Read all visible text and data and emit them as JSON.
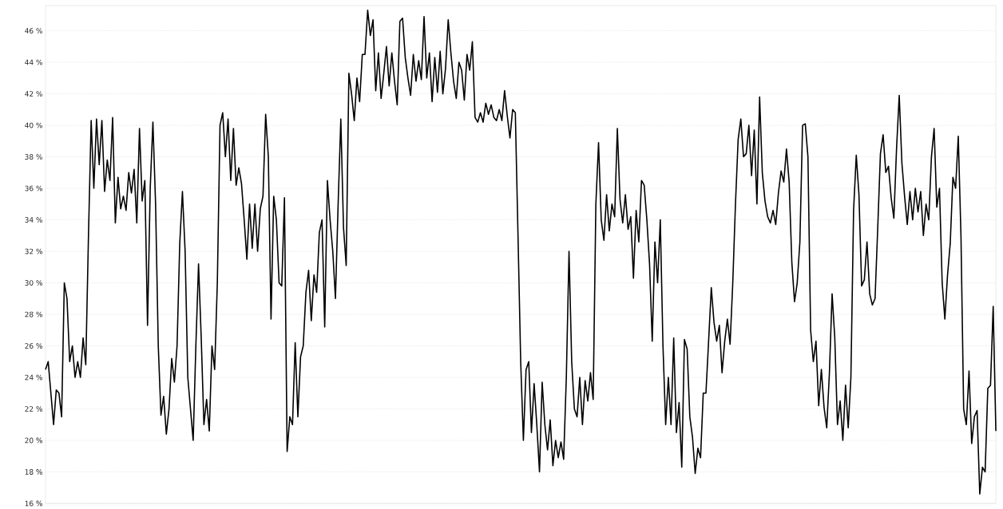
{
  "chart_data": {
    "type": "line",
    "grid": "y",
    "marker": "none",
    "line_style": "solid",
    "tick_labels": "y",
    "ylim": [
      16,
      47.6
    ],
    "yticks": [
      {
        "value": 16,
        "label": "16 %"
      },
      {
        "value": 18,
        "label": "18 %"
      },
      {
        "value": 20,
        "label": "20 %"
      },
      {
        "value": 22,
        "label": "22 %"
      },
      {
        "value": 24,
        "label": "24 %"
      },
      {
        "value": 26,
        "label": "26 %"
      },
      {
        "value": 28,
        "label": "28 %"
      },
      {
        "value": 30,
        "label": "30 %"
      },
      {
        "value": 32,
        "label": "32 %"
      },
      {
        "value": 34,
        "label": "34 %"
      },
      {
        "value": 36,
        "label": "36 %"
      },
      {
        "value": 38,
        "label": "38 %"
      },
      {
        "value": 40,
        "label": "40 %"
      },
      {
        "value": 42,
        "label": "42 %"
      },
      {
        "value": 44,
        "label": "44 %"
      },
      {
        "value": 46,
        "label": "46 %"
      }
    ],
    "categories": [
      null,
      null,
      null,
      null,
      null,
      null,
      null,
      null,
      null,
      null,
      null,
      null,
      null,
      null,
      null,
      null,
      null,
      null,
      null,
      null,
      null,
      null,
      null,
      null,
      null,
      null,
      null,
      null,
      null,
      null,
      null,
      null,
      null,
      null,
      null,
      null,
      null,
      null,
      null,
      null,
      null,
      null,
      null,
      null,
      null,
      null,
      null,
      null,
      null,
      null,
      null,
      null,
      null,
      null,
      null,
      null,
      null,
      null,
      null,
      null,
      null,
      null,
      null,
      null,
      null,
      null,
      null,
      null,
      null,
      null,
      null,
      null,
      null,
      null,
      null,
      null,
      null,
      null,
      null,
      null,
      null,
      null,
      null,
      null,
      null,
      null,
      null,
      null,
      null,
      null,
      null,
      null,
      null,
      null,
      null,
      null,
      null,
      null,
      null,
      null,
      null,
      null,
      null,
      null,
      null,
      null,
      null,
      null,
      null,
      null,
      null,
      null,
      null,
      null,
      null,
      null,
      null,
      null,
      null,
      null,
      null,
      null,
      null,
      null,
      null,
      null,
      null,
      null,
      null,
      null,
      null,
      null,
      null,
      null,
      null,
      null,
      null,
      null,
      null,
      null,
      null,
      null,
      null,
      null,
      null,
      null,
      null,
      null,
      null,
      null,
      null,
      null,
      null,
      null,
      null,
      null,
      null,
      null,
      null,
      null,
      null,
      null,
      null,
      null,
      null,
      null,
      null,
      null,
      null,
      null,
      null,
      null,
      null,
      null,
      null,
      null,
      null,
      null,
      null,
      null,
      null,
      null,
      null,
      null,
      null,
      null,
      null,
      null,
      null,
      null,
      null,
      null,
      null,
      null,
      null,
      null,
      null,
      null,
      null,
      null,
      null,
      null,
      null,
      null,
      null,
      null,
      null,
      null,
      null,
      null,
      null,
      null,
      null,
      null,
      null,
      null,
      null,
      null,
      null,
      null,
      null,
      null,
      null,
      null,
      null,
      null,
      null,
      null,
      null,
      null,
      null,
      null,
      null,
      null,
      null,
      null,
      null,
      null,
      null,
      null,
      null,
      null,
      null,
      null,
      null,
      null,
      null,
      null,
      null,
      null,
      null,
      null,
      null,
      null,
      null,
      null,
      null,
      null,
      null,
      null,
      null,
      null,
      null,
      null,
      null,
      null,
      null,
      null,
      null,
      null,
      null,
      null,
      null,
      null,
      null,
      null,
      null,
      null,
      null,
      null,
      null,
      null,
      null,
      null,
      null,
      null,
      null,
      null,
      null,
      null,
      null,
      null,
      null,
      null,
      null,
      null,
      null,
      null,
      null,
      null,
      null,
      null,
      null,
      null,
      null,
      null,
      null,
      null,
      null,
      null,
      null,
      null,
      null,
      null,
      null,
      null,
      null,
      null,
      null,
      null,
      null,
      null,
      null,
      null,
      null,
      null,
      null,
      null,
      null,
      null,
      null,
      null,
      null,
      null,
      null,
      null,
      null,
      null,
      null,
      null,
      null,
      null,
      null,
      null,
      null,
      null,
      null,
      null,
      null,
      null,
      null,
      null,
      null,
      null,
      null
    ],
    "series": [
      {
        "color": "#000000",
        "values": [
          24.5,
          25,
          23,
          21,
          23.2,
          23,
          21.5,
          30,
          29,
          25,
          26,
          24,
          25,
          24,
          26.5,
          24.8,
          33,
          40.3,
          36,
          40.4,
          37.5,
          40.3,
          35.8,
          37.8,
          36.5,
          40.5,
          33.8,
          36.7,
          34.7,
          35.5,
          34.6,
          37,
          35.7,
          37.2,
          33.8,
          39.8,
          35.2,
          36.5,
          27.3,
          36,
          40.2,
          35,
          26,
          21.6,
          22.8,
          20.4,
          22,
          25.2,
          23.7,
          26,
          32.5,
          35.8,
          32,
          24,
          22,
          20,
          26,
          31.2,
          26.5,
          21,
          22.6,
          20.6,
          26,
          24.5,
          30,
          40,
          40.8,
          38,
          40.4,
          36.5,
          39.8,
          36.2,
          37.3,
          36.3,
          34,
          31.5,
          35,
          32.2,
          35,
          32,
          34.7,
          35.5,
          40.7,
          38,
          27.7,
          35.5,
          34,
          30,
          29.8,
          35.4,
          19.3,
          21.5,
          21,
          26.2,
          21.5,
          25.3,
          26,
          29.4,
          30.8,
          27.6,
          30.5,
          29.4,
          33.2,
          34,
          27.2,
          36.5,
          34,
          32,
          29,
          35,
          40.4,
          33.5,
          31.1,
          43.3,
          42,
          40.3,
          43,
          41.5,
          44.5,
          44.5,
          47.3,
          45.7,
          46.7,
          42.2,
          44.6,
          41.7,
          43.3,
          45,
          42.5,
          44.6,
          42.8,
          41.3,
          46.6,
          46.8,
          44.3,
          43,
          41.9,
          44.5,
          42.8,
          44.1,
          42.9,
          46.9,
          43,
          44.6,
          41.5,
          44.3,
          42.1,
          44.7,
          42,
          43.6,
          46.7,
          44.6,
          42.8,
          41.7,
          44,
          43.5,
          41.6,
          44.5,
          43.5,
          45.3,
          40.5,
          40.2,
          40.8,
          40.2,
          41.4,
          40.7,
          41.3,
          40.5,
          40.3,
          41,
          40.3,
          42.2,
          40.6,
          39.2,
          41,
          40.8,
          33,
          25,
          20,
          24.5,
          25,
          20.5,
          23.6,
          21,
          18,
          23.7,
          21,
          19.4,
          21.3,
          18.4,
          20,
          18.9,
          19.9,
          18.8,
          24,
          32,
          25,
          22,
          21.5,
          24,
          21,
          23.8,
          22.5,
          24.3,
          22.6,
          35,
          38.9,
          34,
          32.7,
          35.6,
          33.3,
          35,
          34.2,
          39.8,
          35.3,
          33.8,
          35.6,
          33.4,
          34.2,
          30.3,
          34.6,
          32.6,
          36.5,
          36.2,
          34,
          31.2,
          26.3,
          32.6,
          30,
          34,
          26,
          21,
          24,
          21,
          26.5,
          20.5,
          22.4,
          18.3,
          26.4,
          25.8,
          21.5,
          20.2,
          17.9,
          19.5,
          18.9,
          23,
          23,
          26.3,
          29.7,
          27.5,
          26.3,
          27.3,
          24.3,
          26.3,
          27.7,
          26.1,
          30,
          35,
          39.1,
          40.4,
          38,
          38.2,
          40,
          36.8,
          39.7,
          35,
          41.8,
          37,
          35.2,
          34.2,
          33.8,
          34.6,
          33.7,
          35.7,
          37.1,
          36.4,
          38.5,
          36.4,
          31.3,
          28.8,
          30,
          32.6,
          40,
          40.1,
          38,
          27,
          25,
          26.3,
          22.2,
          24.5,
          22.1,
          20.8,
          24.3,
          29.3,
          26.5,
          21,
          22.5,
          20,
          23.5,
          20.8,
          24,
          34.6,
          38.1,
          35.6,
          29.8,
          30.2,
          32.6,
          29.3,
          28.6,
          29,
          33.5,
          38.2,
          39.4,
          37,
          37.4,
          35.4,
          34.1,
          38.5,
          41.9,
          37.6,
          35.5,
          33.7,
          35.8,
          34,
          36,
          34.5,
          35.8,
          33,
          35,
          34,
          38,
          39.8,
          34.8,
          36,
          30,
          27.7,
          30.5,
          32.5,
          36.7,
          36,
          39.3,
          33,
          22,
          21,
          24.4,
          19.8,
          21.5,
          21.9,
          16.6,
          18.3,
          18,
          23.3,
          23.5,
          28.5,
          20.6
        ]
      }
    ]
  }
}
